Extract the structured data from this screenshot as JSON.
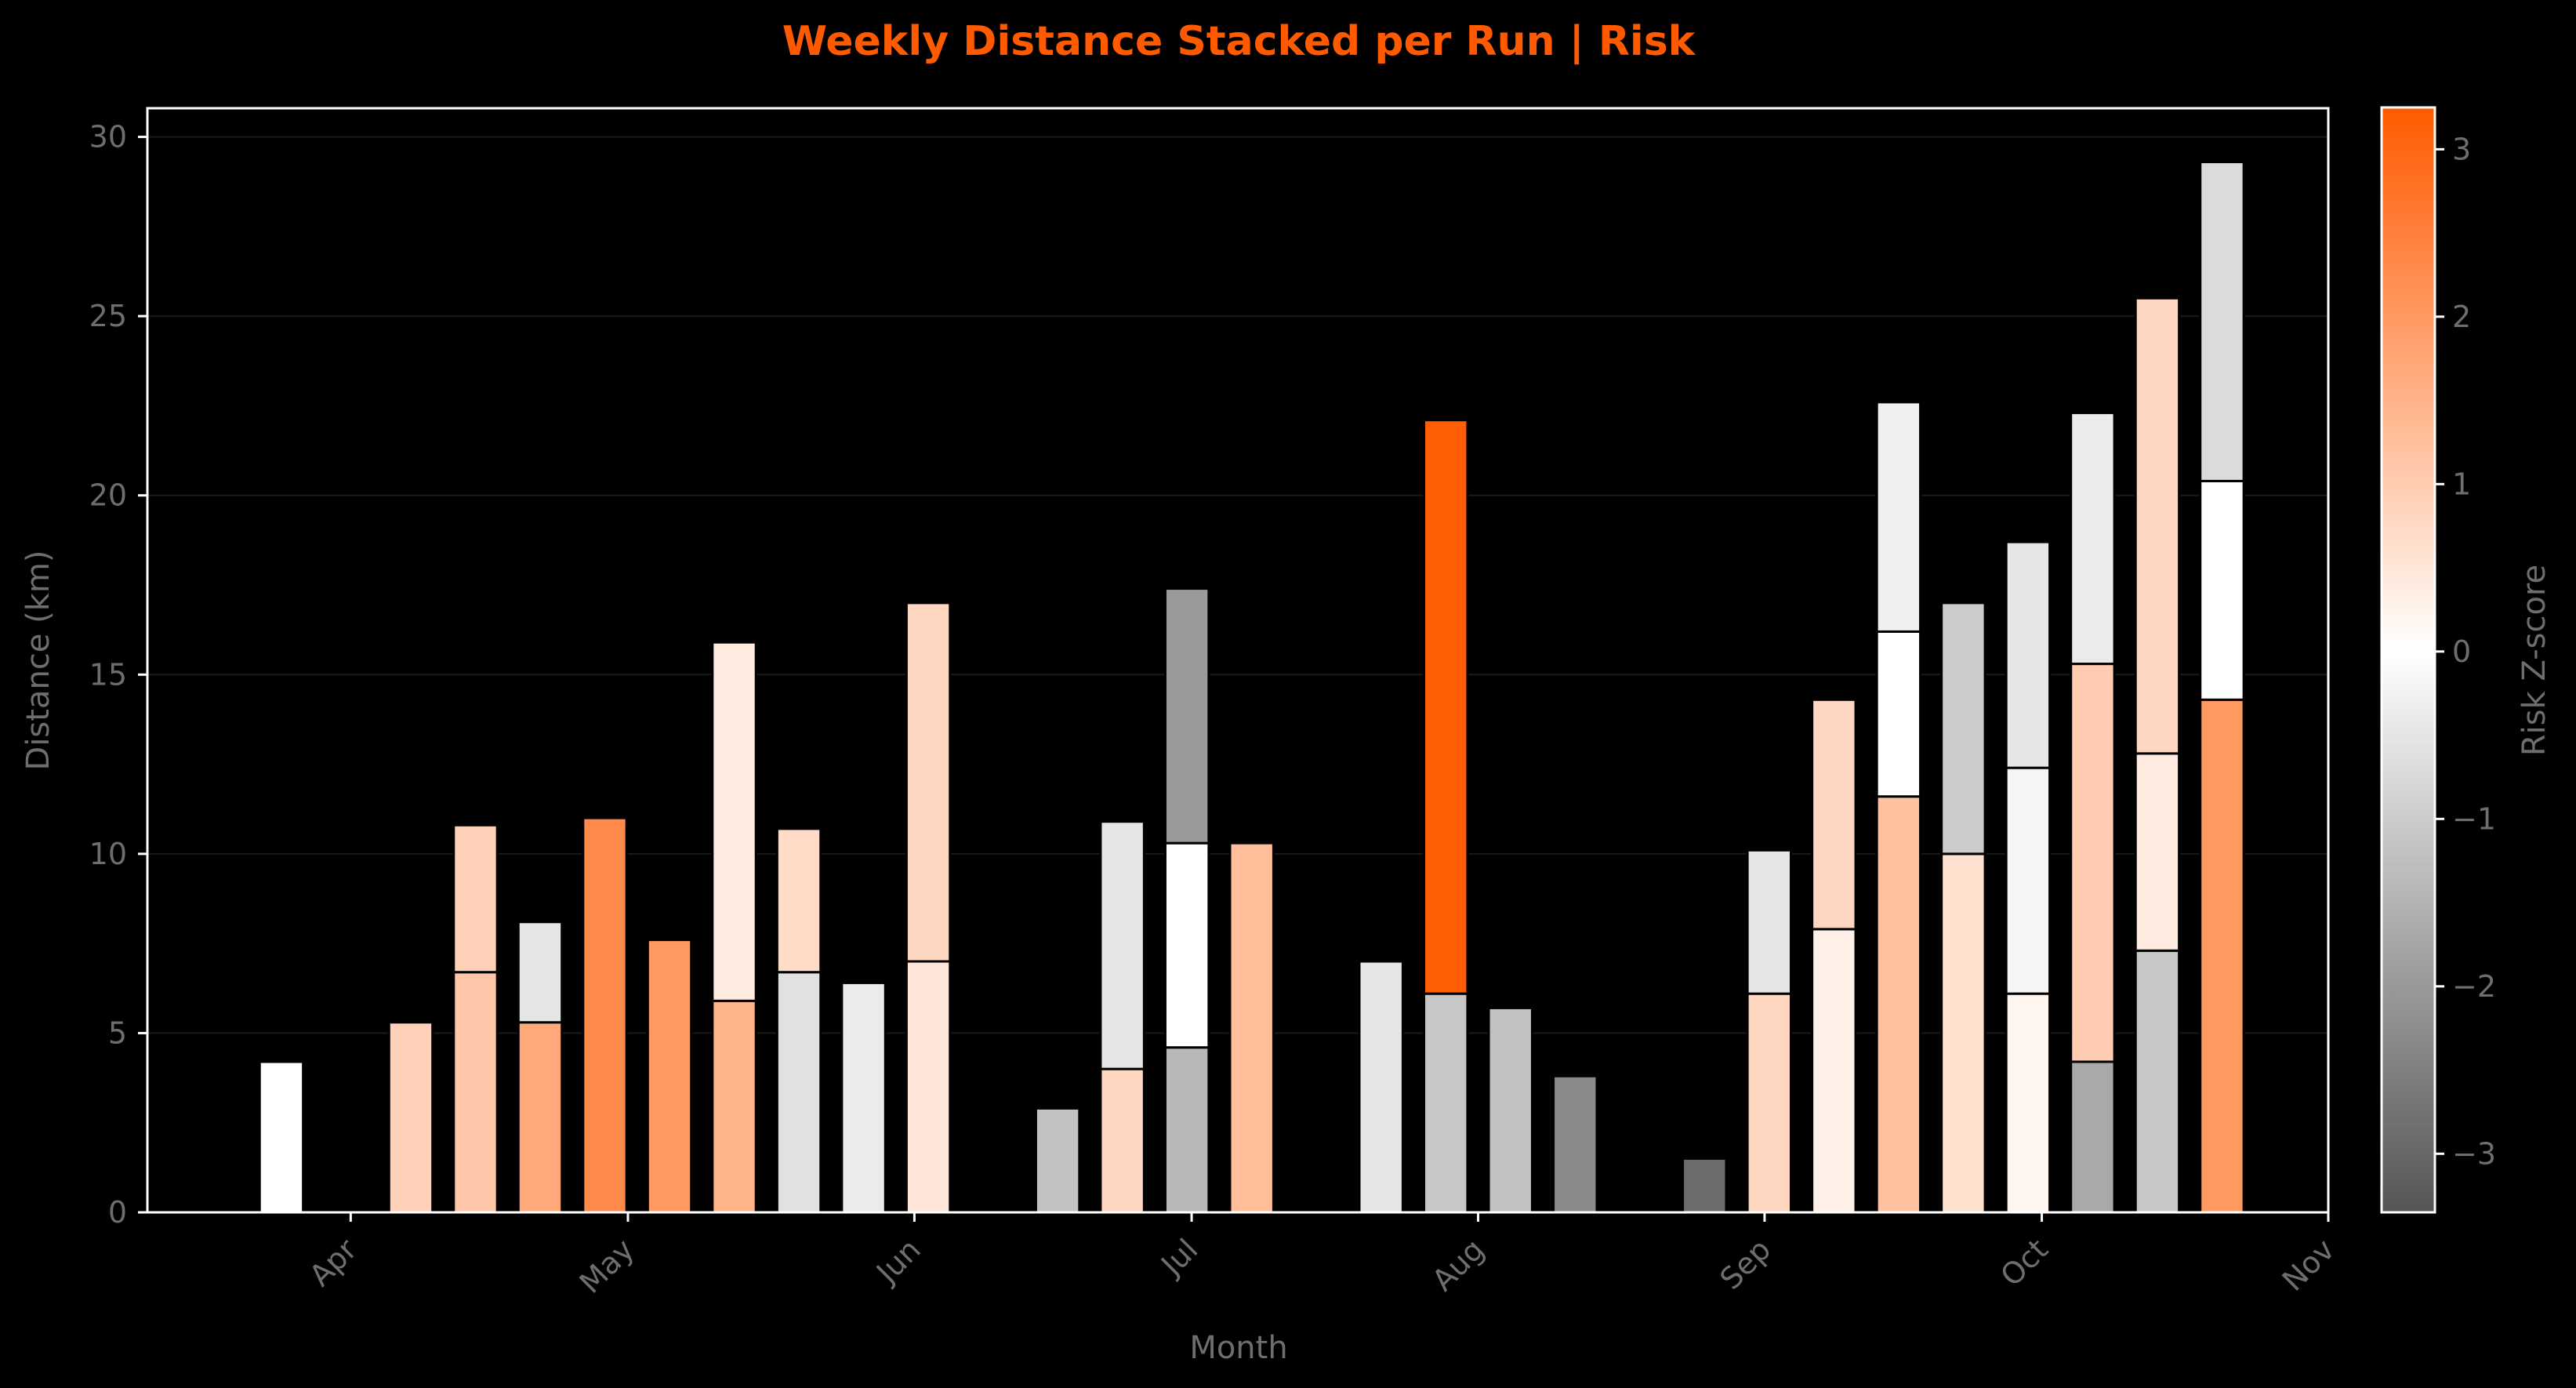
{
  "chart_data": {
    "type": "bar",
    "stacked": true,
    "title": "Weekly Distance Stacked per Run  |  Risk",
    "xlabel": "Month",
    "ylabel": "Distance (km)",
    "ylim": [
      0,
      30.8
    ],
    "yticks": [
      "0",
      "5",
      "10",
      "15",
      "20",
      "25",
      "30"
    ],
    "xlim": [
      "2025-03-10",
      "2025-11-01"
    ],
    "xticks": [
      {
        "date": "2025-04-01",
        "label": "Apr"
      },
      {
        "date": "2025-05-01",
        "label": "May"
      },
      {
        "date": "2025-06-01",
        "label": "Jun"
      },
      {
        "date": "2025-07-01",
        "label": "Jul"
      },
      {
        "date": "2025-08-01",
        "label": "Aug"
      },
      {
        "date": "2025-09-01",
        "label": "Sep"
      },
      {
        "date": "2025-10-01",
        "label": "Oct"
      },
      {
        "date": "2025-11-01",
        "label": "Nov"
      }
    ],
    "grid": true,
    "colorbar": {
      "label": "Risk Z-score",
      "range": [
        -3.35,
        3.25
      ],
      "ticks": [
        "−3",
        "−2",
        "−1",
        "0",
        "1",
        "2",
        "3"
      ],
      "colors": [
        "#555555",
        "#ffffff",
        "#ff5a00"
      ]
    },
    "weeks": [
      {
        "week": "2025-03-24",
        "runs": [
          {
            "km": 4.2,
            "z": 0.0
          }
        ]
      },
      {
        "week": "2025-04-07",
        "runs": [
          {
            "km": 5.3,
            "z": 0.9
          }
        ]
      },
      {
        "week": "2025-04-14",
        "runs": [
          {
            "km": 6.7,
            "z": 1.1
          },
          {
            "km": 4.1,
            "z": 0.9
          }
        ]
      },
      {
        "week": "2025-04-21",
        "runs": [
          {
            "km": 5.3,
            "z": 1.7
          },
          {
            "km": 2.8,
            "z": -0.5
          }
        ]
      },
      {
        "week": "2025-04-28",
        "runs": [
          {
            "km": 11.0,
            "z": 2.3
          }
        ]
      },
      {
        "week": "2025-05-05",
        "runs": [
          {
            "km": 7.6,
            "z": 2.0
          }
        ]
      },
      {
        "week": "2025-05-12",
        "runs": [
          {
            "km": 5.9,
            "z": 1.5
          },
          {
            "km": 10.0,
            "z": 0.4
          }
        ]
      },
      {
        "week": "2025-05-19",
        "runs": [
          {
            "km": 6.7,
            "z": -0.6
          },
          {
            "km": 4.0,
            "z": 0.7
          }
        ]
      },
      {
        "week": "2025-05-26",
        "runs": [
          {
            "km": 6.4,
            "z": -0.4
          }
        ]
      },
      {
        "week": "2025-06-02",
        "runs": [
          {
            "km": 7.0,
            "z": 0.5
          },
          {
            "km": 10.0,
            "z": 0.8
          }
        ]
      },
      {
        "week": "2025-06-16",
        "runs": [
          {
            "km": 2.9,
            "z": -1.2
          }
        ]
      },
      {
        "week": "2025-06-23",
        "runs": [
          {
            "km": 4.0,
            "z": 0.8
          },
          {
            "km": 6.9,
            "z": -0.5
          }
        ]
      },
      {
        "week": "2025-06-30",
        "runs": [
          {
            "km": 4.6,
            "z": -1.4
          },
          {
            "km": 5.7,
            "z": 0.0
          },
          {
            "km": 7.1,
            "z": -2.0
          }
        ]
      },
      {
        "week": "2025-07-07",
        "runs": [
          {
            "km": 10.3,
            "z": 1.3
          }
        ]
      },
      {
        "week": "2025-07-21",
        "runs": [
          {
            "km": 7.0,
            "z": -0.5
          }
        ]
      },
      {
        "week": "2025-07-28",
        "runs": [
          {
            "km": 6.1,
            "z": -1.1
          },
          {
            "km": 16.0,
            "z": 3.2
          }
        ]
      },
      {
        "week": "2025-08-04",
        "runs": [
          {
            "km": 5.7,
            "z": -1.2
          }
        ]
      },
      {
        "week": "2025-08-11",
        "runs": [
          {
            "km": 3.8,
            "z": -2.3
          }
        ]
      },
      {
        "week": "2025-08-25",
        "runs": [
          {
            "km": 1.5,
            "z": -2.9
          }
        ]
      },
      {
        "week": "2025-09-01",
        "runs": [
          {
            "km": 6.1,
            "z": 0.8
          },
          {
            "km": 4.0,
            "z": -0.5
          }
        ]
      },
      {
        "week": "2025-09-08",
        "runs": [
          {
            "km": 7.9,
            "z": 0.3
          },
          {
            "km": 6.4,
            "z": 0.8
          }
        ]
      },
      {
        "week": "2025-09-15",
        "runs": [
          {
            "km": 11.6,
            "z": 1.2
          },
          {
            "km": 4.6,
            "z": 0.0
          },
          {
            "km": 6.4,
            "z": -0.3
          }
        ]
      },
      {
        "week": "2025-09-22",
        "runs": [
          {
            "km": 10.0,
            "z": 0.6
          },
          {
            "km": 7.0,
            "z": -1.0
          }
        ]
      },
      {
        "week": "2025-09-29",
        "runs": [
          {
            "km": 6.1,
            "z": 0.2
          },
          {
            "km": 6.3,
            "z": -0.2
          },
          {
            "km": 6.3,
            "z": -0.5
          }
        ]
      },
      {
        "week": "2025-10-06",
        "runs": [
          {
            "km": 4.2,
            "z": -1.7
          },
          {
            "km": 11.1,
            "z": 1.0
          },
          {
            "km": 7.0,
            "z": -0.4
          }
        ]
      },
      {
        "week": "2025-10-13",
        "runs": [
          {
            "km": 7.3,
            "z": -1.1
          },
          {
            "km": 5.5,
            "z": 0.4
          },
          {
            "km": 12.7,
            "z": 0.8
          }
        ]
      },
      {
        "week": "2025-10-20",
        "runs": [
          {
            "km": 14.3,
            "z": 2.0
          },
          {
            "km": 6.1,
            "z": 0.0
          },
          {
            "km": 8.9,
            "z": -0.7
          }
        ]
      }
    ]
  }
}
